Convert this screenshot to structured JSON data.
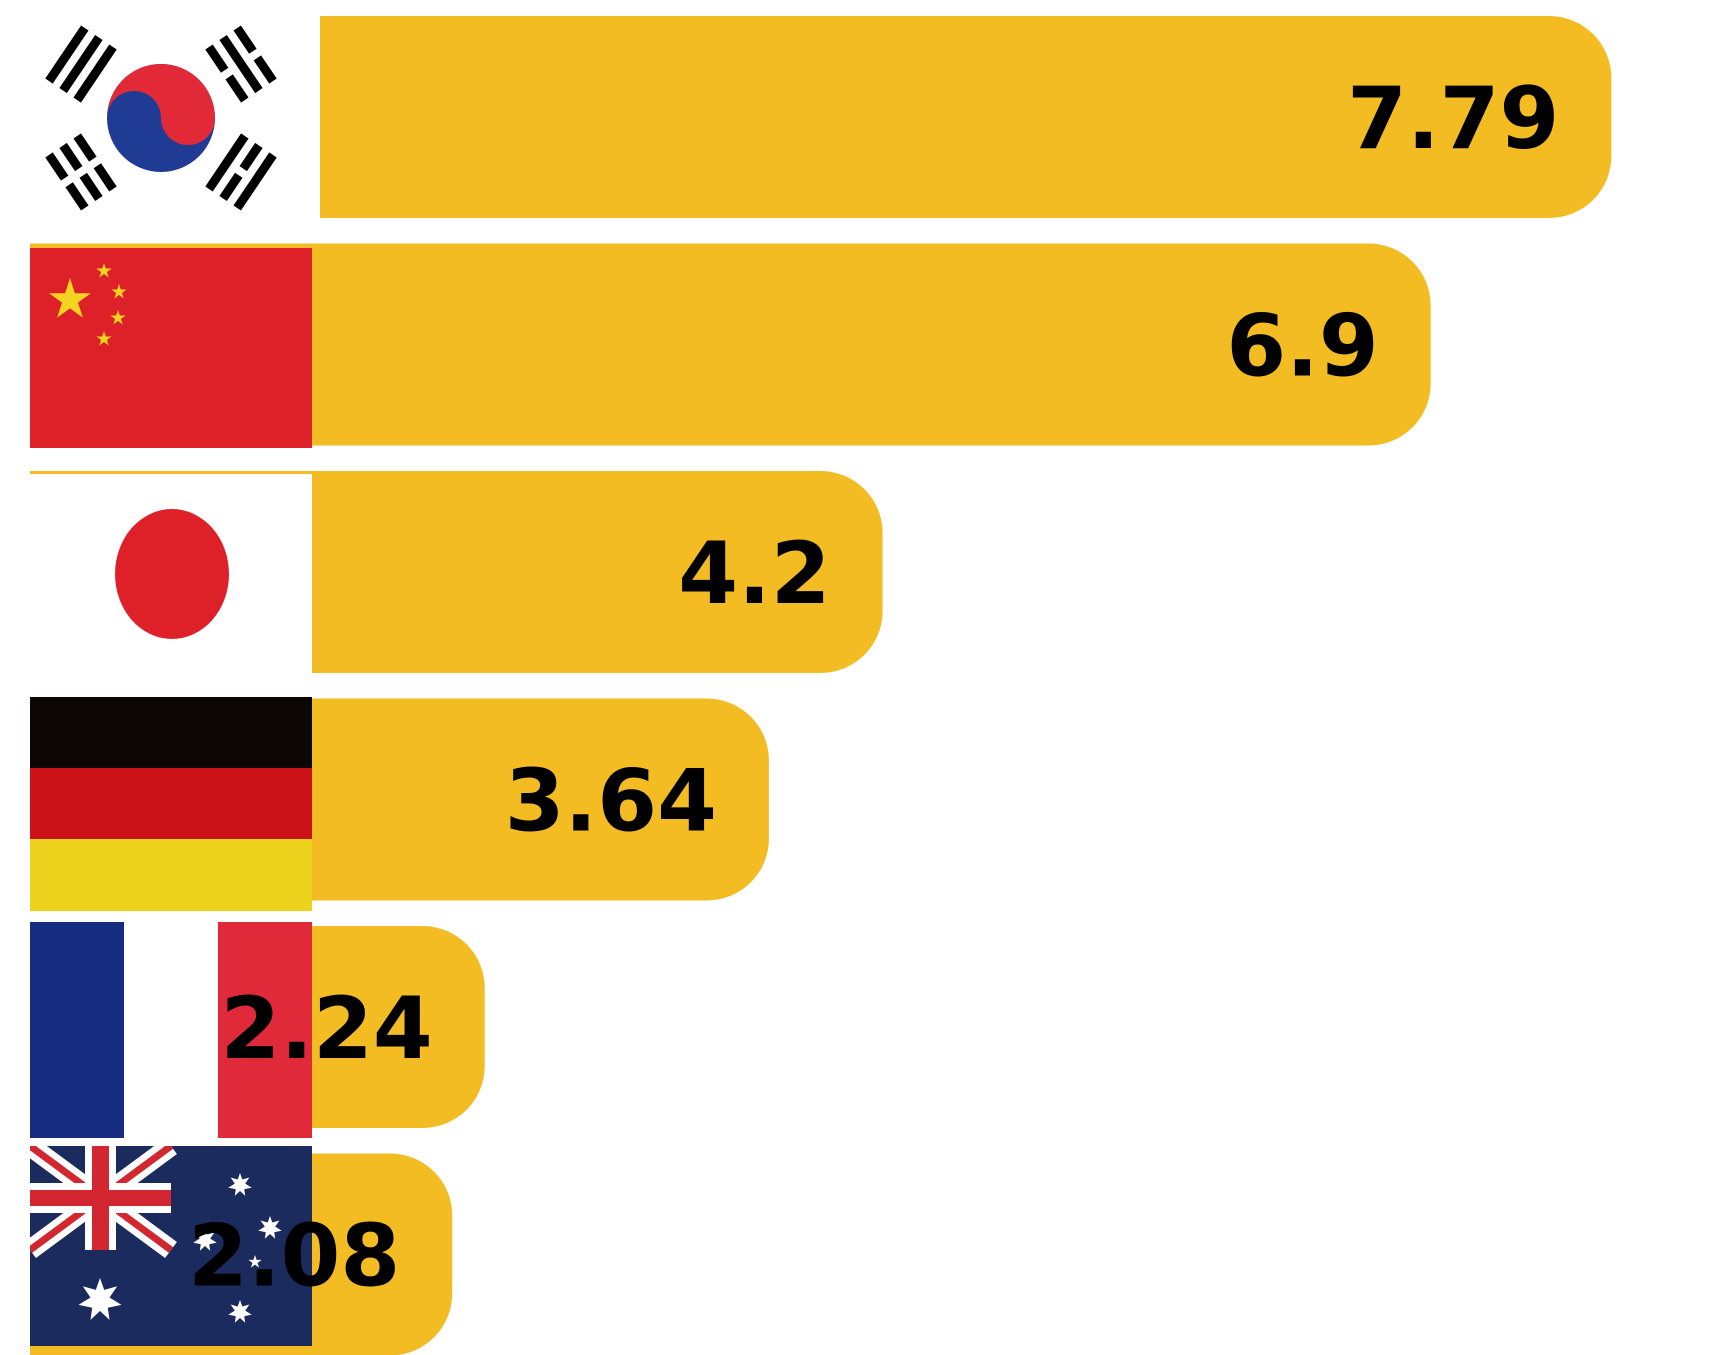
{
  "chart_data": {
    "type": "bar",
    "orientation": "horizontal",
    "bar_color": "#F2BC22",
    "categories": [
      "South Korea",
      "China",
      "Japan",
      "Germany",
      "France",
      "Australia"
    ],
    "values": [
      7.79,
      6.9,
      4.2,
      3.64,
      2.24,
      2.08
    ],
    "labels": [
      "7.79",
      "6.9",
      "4.2",
      "3.64",
      "2.24",
      "2.08"
    ],
    "icons": [
      "south-korea-flag-icon",
      "china-flag-icon",
      "japan-flag-icon",
      "germany-flag-icon",
      "france-flag-icon",
      "australia-flag-icon"
    ],
    "title": "",
    "xlabel": "",
    "ylabel": "",
    "grid": false,
    "legend": "none"
  }
}
